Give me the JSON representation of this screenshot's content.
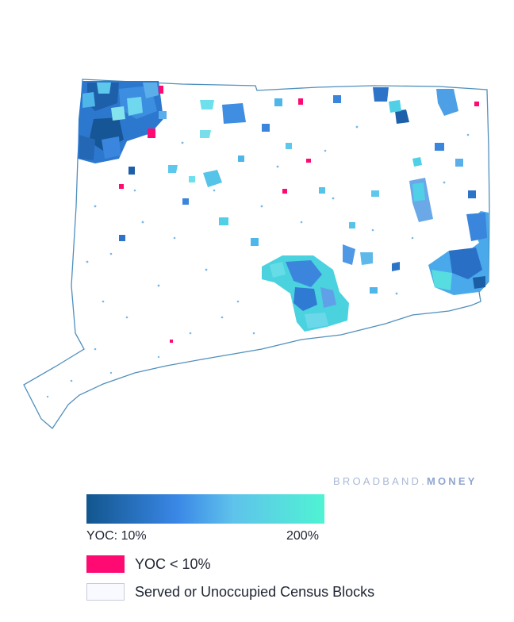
{
  "brand": {
    "part1": "BROADBAND.",
    "part2": "MONEY"
  },
  "legend": {
    "gradient": {
      "min_label": "YOC: 10%",
      "max_label": "200%",
      "colors": [
        "#12568e",
        "#3a87e6",
        "#5fc3eb",
        "#4ff3d3"
      ]
    },
    "items": [
      {
        "label": "YOC < 10%",
        "color": "#fe0a72"
      },
      {
        "label": "Served or Unoccupied Census Blocks",
        "color": "#f8faff"
      }
    ]
  },
  "map": {
    "outline_color": "#4f8fbd",
    "low_yoc_color": "#fe0a72"
  }
}
